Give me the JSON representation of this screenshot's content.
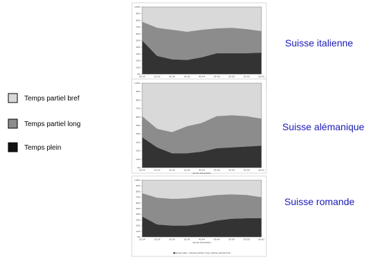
{
  "legend": {
    "items": [
      {
        "label": "Temps partiel bref",
        "color": "#d9d9d9"
      },
      {
        "label": "Temps partiel long",
        "color": "#8c8c8c"
      },
      {
        "label": "Temps plein",
        "color": "#111111"
      }
    ]
  },
  "chart_data": [
    {
      "type": "area",
      "stacked": true,
      "region": "Suisse italienne",
      "categories": [
        "20-24",
        "25-29",
        "30-34",
        "35-39",
        "40-44",
        "45-49",
        "50-54",
        "55-59",
        "60-61"
      ],
      "xlabel": "année échantillon",
      "yticks": [
        "0%",
        "10%",
        "20%",
        "30%",
        "40%",
        "50%",
        "60%",
        "70%",
        "80%",
        "90%",
        "100%"
      ],
      "ylim": [
        0,
        100
      ],
      "legend_position": "bottom",
      "legend_text": "■temps plein □temps partiel long □temps partiel bref",
      "series": [
        {
          "name": "temps plein",
          "color": "#333333",
          "values": [
            50,
            27,
            22,
            21,
            25,
            31,
            31,
            31,
            32
          ]
        },
        {
          "name": "temps partiel long",
          "color": "#8c8c8c",
          "values": [
            28,
            42,
            44,
            42,
            41,
            37,
            38,
            36,
            32
          ]
        },
        {
          "name": "temps partiel bref",
          "color": "#d9d9d9",
          "values": [
            22,
            31,
            34,
            37,
            34,
            32,
            31,
            33,
            36
          ]
        }
      ]
    },
    {
      "type": "area",
      "stacked": true,
      "region": "Suisse alémanique",
      "categories": [
        "20-24",
        "25-29",
        "30-34",
        "35-39",
        "40-44",
        "45-49",
        "50-54",
        "55-59",
        "60-61"
      ],
      "xlabel": "année échantillon",
      "yticks": [
        "0%",
        "10%",
        "20%",
        "30%",
        "40%",
        "50%",
        "60%",
        "70%",
        "80%",
        "90%",
        "100%"
      ],
      "ylim": [
        0,
        100
      ],
      "series": [
        {
          "name": "temps plein",
          "color": "#333333",
          "values": [
            36,
            24,
            17,
            17,
            19,
            23,
            24,
            25,
            26
          ]
        },
        {
          "name": "temps partiel long",
          "color": "#8c8c8c",
          "values": [
            25,
            22,
            25,
            32,
            34,
            38,
            38,
            36,
            32
          ]
        },
        {
          "name": "temps partiel bref",
          "color": "#d9d9d9",
          "values": [
            39,
            54,
            58,
            51,
            47,
            39,
            38,
            39,
            42
          ]
        }
      ]
    },
    {
      "type": "area",
      "stacked": true,
      "region": "Suisse romande",
      "categories": [
        "20-24",
        "25-29",
        "30-34",
        "35-39",
        "40-44",
        "45-49",
        "50-54",
        "55-59",
        "60-61"
      ],
      "xlabel": "année échantillon",
      "yticks": [
        "0%",
        "10%",
        "20%",
        "30%",
        "40%",
        "50%",
        "60%",
        "70%",
        "80%",
        "90%",
        "100%"
      ],
      "ylim": [
        0,
        100
      ],
      "legend_position": "bottom",
      "legend_text": "■temps plein □temps partiel long □temps partiel bref",
      "series": [
        {
          "name": "temps plein",
          "color": "#333333",
          "values": [
            36,
            22,
            20,
            20,
            23,
            29,
            32,
            33,
            33
          ]
        },
        {
          "name": "temps partiel long",
          "color": "#8c8c8c",
          "values": [
            41,
            47,
            47,
            48,
            48,
            45,
            43,
            41,
            37
          ]
        },
        {
          "name": "temps partiel bref",
          "color": "#d9d9d9",
          "values": [
            23,
            31,
            33,
            32,
            29,
            26,
            25,
            26,
            30
          ]
        }
      ]
    }
  ]
}
